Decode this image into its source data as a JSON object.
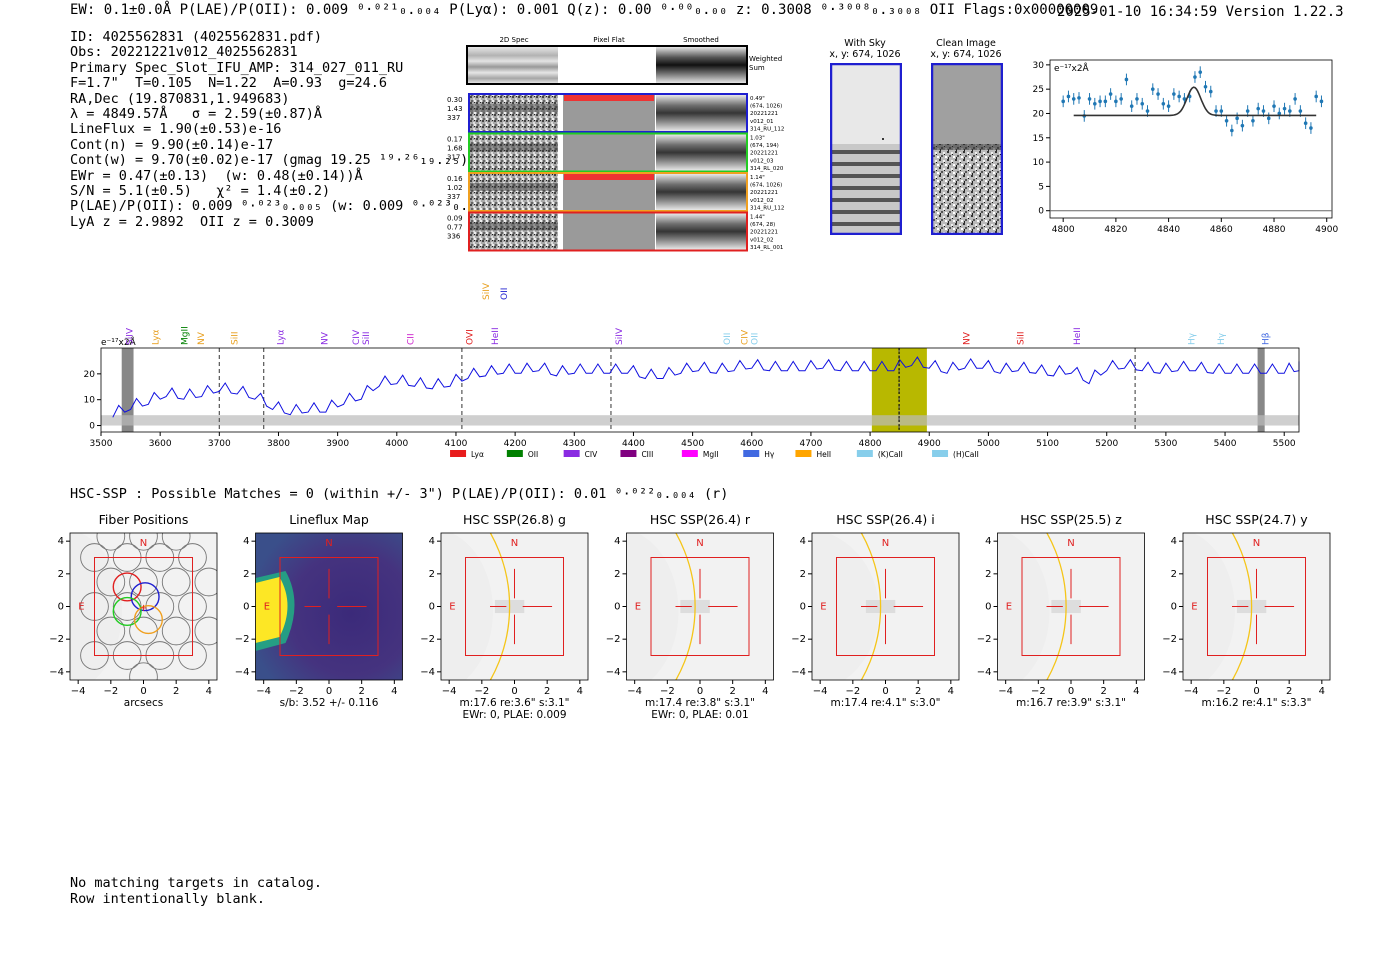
{
  "header": {
    "left": "EW: 0.1±0.0Å  P(LAE)/P(OII): 0.009 ⁰·⁰²¹₀.₀₀₄  P(Lyα): 0.001  Q(z): 0.00 ⁰·⁰⁰₀.₀₀  z: 0.3008 ⁰·³⁰⁰⁸₀.₃₀₀₈ OII  Flags:0x00000009",
    "right": "2025-01-10 16:34:59  Version 1.22.3"
  },
  "info_lines": [
    "ID: 4025562831 (4025562831.pdf)",
    "Obs: 20221221v012_4025562831",
    "Primary Spec_Slot_IFU_AMP: 314_027_011_RU",
    "F=1.7\"  T=0.105  N=1.22  A=0.93  g=24.6",
    "RA,Dec (19.870831,1.949683)",
    "λ = 4849.57Å   σ = 2.59(±0.87)Å",
    "LineFlux = 1.90(±0.53)e-16",
    "Cont(n) = 9.90(±0.14)e-17",
    "Cont(w) = 9.70(±0.02)e-17 (gmag 19.25 ¹⁹·²⁶₁₉.₂₅)",
    "EWr = 0.47(±0.13)  (w: 0.48(±0.14))Å",
    "S/N = 5.1(±0.5)   χ² = 1.4(±0.2)",
    "P(LAE)/P(OII): 0.009 ⁰·⁰²³₀.₀₀₅ (w: 0.009 ⁰·⁰²³₀.₀₀₄)",
    "LyA z = 2.9892  OII z = 0.3009"
  ],
  "cutouts": {
    "col_headers": [
      "2D Spec",
      "Pixel Flat",
      "Smoothed"
    ],
    "weighted_sum_label": [
      "Weighted",
      "Sum"
    ],
    "rows": [
      {
        "left": [
          "0.30",
          "1.43",
          "337"
        ],
        "right": [
          "0.49\"",
          "(674, 1026)",
          "20221221",
          "v012_01",
          "314_RU_112"
        ],
        "color": "#1f1fd0"
      },
      {
        "left": [
          "0.17",
          "1.68",
          "317"
        ],
        "right": [
          "1.03\"",
          "(674, 194)",
          "20221221",
          "v012_03",
          "314_RL_020"
        ],
        "color": "#22cc22"
      },
      {
        "left": [
          "0.16",
          "1.02",
          "337"
        ],
        "right": [
          "1.14\"",
          "(674, 1026)",
          "20221221",
          "v012_02",
          "314_RU_112"
        ],
        "color": "#f0a020"
      },
      {
        "left": [
          "0.09",
          "0.77",
          "336"
        ],
        "right": [
          "1.44\"",
          "(674, 28)",
          "20221221",
          "v012_02",
          "314_RL_001"
        ],
        "color": "#e02020"
      }
    ]
  },
  "sky_panels": {
    "with_sky": [
      "With Sky",
      "x, y: 674, 1026"
    ],
    "clean": [
      "Clean Image",
      "x, y: 674, 1026"
    ]
  },
  "chart_data": [
    {
      "type": "scatter",
      "title": "",
      "ylabel": "e⁻¹⁷x2Å",
      "xlim": [
        4795,
        4902
      ],
      "ylim": [
        -1.5,
        31
      ],
      "xticks": [
        4800,
        4820,
        4840,
        4860,
        4880,
        4900
      ],
      "yticks": [
        0,
        5,
        10,
        15,
        20,
        25,
        30
      ],
      "points": {
        "x": [
          4800,
          4802,
          4804,
          4806,
          4808,
          4810,
          4812,
          4814,
          4816,
          4818,
          4820,
          4822,
          4824,
          4826,
          4828,
          4830,
          4832,
          4834,
          4836,
          4838,
          4840,
          4842,
          4844,
          4846,
          4848,
          4850,
          4852,
          4854,
          4856,
          4858,
          4860,
          4862,
          4864,
          4866,
          4868,
          4870,
          4872,
          4874,
          4876,
          4878,
          4880,
          4882,
          4884,
          4886,
          4888,
          4890,
          4892,
          4894,
          4896,
          4898
        ],
        "y": [
          22.5,
          23.5,
          23,
          23.2,
          19.5,
          23,
          22,
          22.5,
          22.5,
          24,
          22.5,
          23,
          27,
          21.5,
          23,
          22,
          20.5,
          25,
          24,
          22,
          21.5,
          24,
          23.5,
          23,
          23.5,
          27.5,
          28.5,
          25.5,
          24.5,
          20.5,
          20.5,
          18.5,
          16.5,
          19,
          17.5,
          20.5,
          18.5,
          21,
          20.5,
          19,
          21.5,
          20,
          21,
          20.5,
          23,
          20.5,
          18,
          17,
          23.5,
          22.5
        ],
        "err": [
          1.2,
          1.2,
          1.2,
          1.2,
          1.2,
          1.2,
          1.2,
          1.2,
          1.2,
          1.2,
          1.2,
          1.2,
          1.2,
          1.2,
          1.2,
          1.2,
          1.2,
          1.2,
          1.2,
          1.2,
          1.2,
          1.2,
          1.2,
          1.2,
          1.2,
          1.2,
          1.2,
          1.2,
          1.2,
          1.2,
          1.2,
          1.2,
          1.2,
          1.2,
          1.2,
          1.2,
          1.2,
          1.2,
          1.2,
          1.2,
          1.2,
          1.2,
          1.2,
          1.2,
          1.2,
          1.2,
          1.2,
          1.2,
          1.2,
          1.2
        ]
      },
      "fit": {
        "continuum": 19.6,
        "center": 4849.6,
        "amplitude": 5.8,
        "sigma": 2.6,
        "x_range": [
          4804,
          4896
        ]
      }
    },
    {
      "type": "line",
      "ylabel": "e⁻¹⁷x2Å",
      "xlim": [
        3500,
        5525
      ],
      "ylim": [
        -2.5,
        30
      ],
      "xticks": [
        3500,
        3600,
        3700,
        3800,
        3900,
        4000,
        4100,
        4200,
        4300,
        4400,
        4500,
        4600,
        4700,
        4800,
        4900,
        5000,
        5100,
        5200,
        5300,
        5400,
        5500
      ],
      "yticks": [
        0,
        10,
        20
      ],
      "series": [
        {
          "name": "spectrum",
          "x": [
            3520,
            3550,
            3580,
            3610,
            3640,
            3670,
            3700,
            3730,
            3760,
            3790,
            3820,
            3850,
            3880,
            3910,
            3940,
            3970,
            4000,
            4030,
            4060,
            4090,
            4120,
            4150,
            4180,
            4210,
            4240,
            4270,
            4300,
            4330,
            4360,
            4390,
            4420,
            4450,
            4480,
            4510,
            4540,
            4570,
            4600,
            4630,
            4660,
            4690,
            4720,
            4750,
            4780,
            4810,
            4840,
            4870,
            4900,
            4930,
            4960,
            4990,
            5020,
            5050,
            5080,
            5110,
            5140,
            5170,
            5200,
            5230,
            5260,
            5290,
            5320,
            5350,
            5380,
            5410,
            5440,
            5470,
            5500,
            5525
          ],
          "y": [
            5,
            8,
            10,
            13,
            12,
            13,
            15,
            14,
            12,
            8,
            6,
            7,
            7,
            10,
            12,
            17,
            18,
            17,
            16,
            17,
            20,
            21,
            22,
            22,
            23,
            21,
            22,
            22,
            22,
            22,
            20,
            20,
            22,
            23,
            22,
            23,
            24,
            23,
            23,
            23,
            24,
            23,
            23,
            23,
            23,
            25,
            24,
            22,
            24,
            24,
            22,
            23,
            22,
            21,
            22,
            18,
            23,
            24,
            23,
            22,
            23,
            23,
            22,
            22,
            22,
            22,
            22,
            23
          ]
        }
      ],
      "noise_band": [
        0,
        4
      ],
      "shaded_regions": [
        {
          "range": [
            4803,
            4896
          ],
          "color": "#b8b800"
        },
        {
          "range": [
            3535,
            3555
          ],
          "color": "#888888"
        },
        {
          "range": [
            5455,
            5467
          ],
          "color": "#888888"
        }
      ],
      "dashed_lines": [
        3700,
        3775,
        4110,
        4362,
        4849,
        5248
      ],
      "line_labels": [
        {
          "text": "SiIV",
          "x": 3548,
          "color": "#8a2be2",
          "tier": "low"
        },
        {
          "text": "Lyα",
          "x": 3592,
          "color": "#e8a020",
          "tier": "low"
        },
        {
          "text": "MgII",
          "x": 3641,
          "color": "#008000",
          "tier": "low"
        },
        {
          "text": "NV",
          "x": 3669,
          "color": "#e8a020",
          "tier": "low"
        },
        {
          "text": "SiII",
          "x": 3726,
          "color": "#e8a020",
          "tier": "low"
        },
        {
          "text": "Lyα",
          "x": 3803,
          "color": "#8a2be2",
          "tier": "low"
        },
        {
          "text": "NV",
          "x": 3878,
          "color": "#8a2be2",
          "tier": "low"
        },
        {
          "text": "CIV",
          "x": 3931,
          "color": "#8a2be2",
          "tier": "low"
        },
        {
          "text": "SiII",
          "x": 3948,
          "color": "#8a2be2",
          "tier": "low"
        },
        {
          "text": "CII",
          "x": 4023,
          "color": "#cc22cc",
          "tier": "low"
        },
        {
          "text": "OVI",
          "x": 4123,
          "color": "#e02020",
          "tier": "low"
        },
        {
          "text": "HeII",
          "x": 4166,
          "color": "#8a2be2",
          "tier": "low"
        },
        {
          "text": "SiIV",
          "x": 4151,
          "color": "#e8a020",
          "tier": "high"
        },
        {
          "text": "OII",
          "x": 4181,
          "color": "#1f1fd0",
          "tier": "high"
        },
        {
          "text": "SiIV",
          "x": 4376,
          "color": "#8a2be2",
          "tier": "low"
        },
        {
          "text": "OII",
          "x": 4558,
          "color": "#87ceeb",
          "tier": "low"
        },
        {
          "text": "CIV",
          "x": 4588,
          "color": "#e8a020",
          "tier": "low"
        },
        {
          "text": "OII",
          "x": 4605,
          "color": "#87ceeb",
          "tier": "low"
        },
        {
          "text": "NV",
          "x": 4963,
          "color": "#e02020",
          "tier": "low"
        },
        {
          "text": "SiII",
          "x": 5054,
          "color": "#e02020",
          "tier": "low"
        },
        {
          "text": "HeII",
          "x": 5150,
          "color": "#8a2be2",
          "tier": "low"
        },
        {
          "text": "Hγ",
          "x": 5343,
          "color": "#87ceeb",
          "tier": "low"
        },
        {
          "text": "Hγ",
          "x": 5393,
          "color": "#87ceeb",
          "tier": "low"
        },
        {
          "text": "Hβ",
          "x": 5468,
          "color": "#4169e1",
          "tier": "low"
        }
      ],
      "legend": [
        {
          "label": "Lyα",
          "color": "#e81c1c"
        },
        {
          "label": "OII",
          "color": "#008000"
        },
        {
          "label": "CIV",
          "color": "#8a2be2"
        },
        {
          "label": "CIII",
          "color": "#800080"
        },
        {
          "label": "MgII",
          "color": "#ff00ff"
        },
        {
          "label": "Hγ",
          "color": "#4169e1"
        },
        {
          "label": "HeII",
          "color": "#ffa500"
        },
        {
          "label": "(K)CaII",
          "color": "#87ceeb"
        },
        {
          "label": "(H)CaII",
          "color": "#87ceeb"
        }
      ]
    }
  ],
  "hsc": {
    "summary": "HSC-SSP : Possible Matches = 0 (within +/- 3\")  P(LAE)/P(OII): 0.01 ⁰·⁰²²₀.₀₀₄ (r)",
    "axis_ticks": [
      "−4",
      "−2",
      "0",
      "2",
      "4"
    ],
    "panels": [
      {
        "title": "Fiber Positions",
        "captions": [
          "arcsecs"
        ]
      },
      {
        "title": "Lineflux Map",
        "captions": [
          "s/b: 3.52 +/- 0.116"
        ]
      },
      {
        "title": "HSC SSP(26.8) g",
        "captions": [
          "m:17.6  re:3.6\"  s:3.1\"",
          "EWr: 0, PLAE: 0.009"
        ]
      },
      {
        "title": "HSC SSP(26.4) r",
        "captions": [
          "m:17.4  re:3.8\"  s:3.1\"",
          "EWr: 0, PLAE: 0.01"
        ]
      },
      {
        "title": "HSC SSP(26.4) i",
        "captions": [
          "m:17.4  re:4.1\"  s:3.0\""
        ]
      },
      {
        "title": "HSC SSP(25.5) z",
        "captions": [
          "m:16.7  re:3.9\"  s:3.1\""
        ]
      },
      {
        "title": "HSC SSP(24.7) y",
        "captions": [
          "m:16.2  re:4.1\"  s:3.3\""
        ]
      }
    ],
    "compass_n": "N",
    "compass_e": "E"
  },
  "footer": [
    "No matching targets in catalog.",
    "Row intentionally blank."
  ]
}
